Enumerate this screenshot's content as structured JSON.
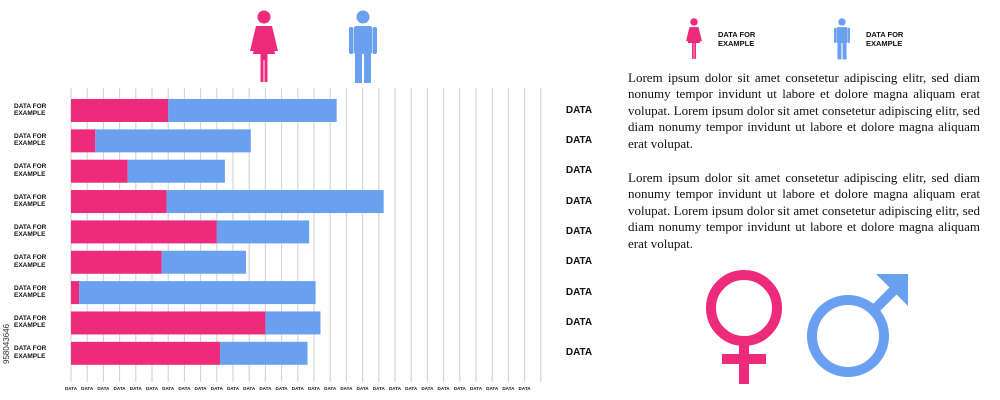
{
  "colors": {
    "female": "#ee2a7b",
    "male": "#6aa0f0",
    "grid": "#cfcfd6"
  },
  "legend": {
    "female_label": "DATA FOR EXAMPLE",
    "male_label": "DATA FOR EXAMPLE"
  },
  "chart_data": {
    "type": "bar",
    "orientation": "horizontal",
    "stacked": true,
    "categories": [
      "DATA FOR EXAMPLE",
      "DATA FOR EXAMPLE",
      "DATA FOR EXAMPLE",
      "DATA FOR EXAMPLE",
      "DATA FOR EXAMPLE",
      "DATA FOR EXAMPLE",
      "DATA FOR EXAMPLE",
      "DATA FOR EXAMPLE",
      "DATA FOR EXAMPLE"
    ],
    "right_labels": [
      "DATA",
      "DATA",
      "DATA",
      "DATA",
      "DATA",
      "DATA",
      "DATA",
      "DATA",
      "DATA"
    ],
    "x_ticks": [
      "DATA",
      "DATA",
      "DATA",
      "DATA",
      "DATA",
      "DATA",
      "DATA",
      "DATA",
      "DATA",
      "DATA",
      "DATA",
      "DATA",
      "DATA",
      "DATA",
      "DATA",
      "DATA",
      "DATA",
      "DATA",
      "DATA",
      "DATA",
      "DATA",
      "DATA",
      "DATA",
      "DATA",
      "DATA",
      "DATA",
      "DATA",
      "DATA",
      "DATA"
    ],
    "xlim": [
      0,
      29
    ],
    "series": [
      {
        "name": "DATA FOR EXAMPLE",
        "color": "#ee2a7b",
        "values": [
          6.0,
          1.5,
          3.5,
          5.9,
          9.0,
          5.6,
          0.5,
          12.0,
          9.2
        ]
      },
      {
        "name": "DATA FOR EXAMPLE",
        "color": "#6aa0f0",
        "values": [
          10.4,
          9.6,
          6.0,
          13.4,
          5.7,
          5.2,
          14.6,
          3.4,
          5.4
        ]
      }
    ],
    "grid": true
  },
  "text": {
    "paragraph_1": "Lorem ipsum dolor sit amet consetetur adipiscing elitr, sed diam nonumy tempor invidunt ut labore et dolore magna aliquam erat volupat. Lorem ipsum dolor sit amet consetetur adipiscing elitr, sed diam nonumy tempor invidunt ut labore et dolore magna aliquam erat volupat.",
    "paragraph_2": "Lorem ipsum dolor sit amet consetetur adipiscing elitr, sed diam nonumy tempor invidunt ut labore et dolore magna aliquam erat volupat. Lorem ipsum dolor sit amet consetetur adipiscing elitr, sed diam nonumy tempor invidunt ut labore et dolore magna aliquam erat volupat."
  },
  "watermark": "958043646",
  "icons": [
    "female-person-icon",
    "male-person-icon",
    "female-symbol-icon",
    "male-symbol-icon"
  ]
}
